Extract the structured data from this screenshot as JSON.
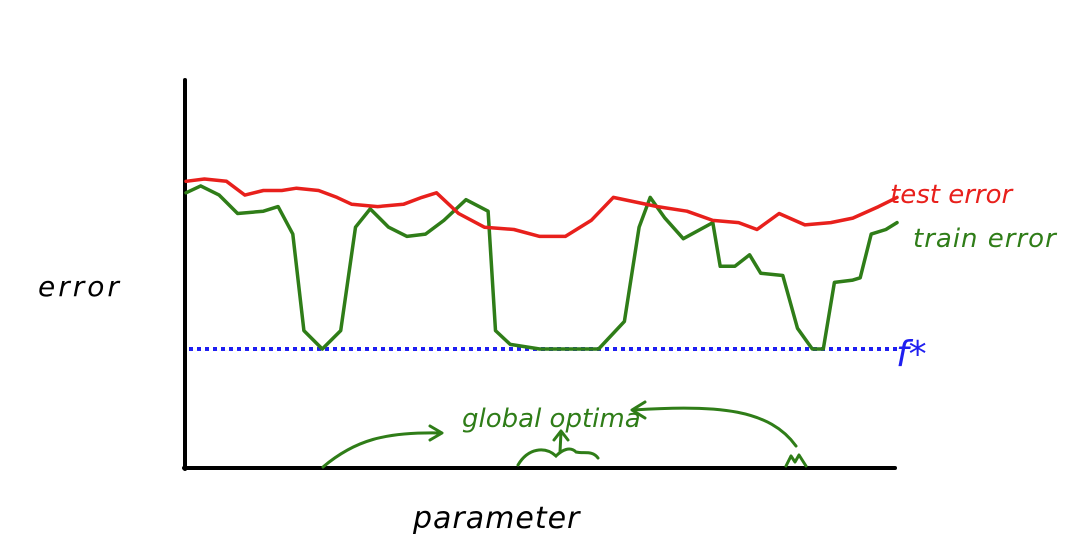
{
  "labels": {
    "y_axis": "error",
    "x_axis": "parameter",
    "test_series": "test error",
    "train_series": "train error",
    "baseline": "f*",
    "annotation": "global optima"
  },
  "colors": {
    "test": "#e8201c",
    "train": "#2f7d18",
    "baseline": "#1f1ff0",
    "axis": "#000000",
    "text": "#000000"
  },
  "chart_data": {
    "type": "line",
    "title": "",
    "xlabel": "parameter",
    "ylabel": "error",
    "x_axis_ticks": false,
    "y_axis_ticks": false,
    "grid": false,
    "baseline": {
      "label": "f*",
      "style": "dotted",
      "value": 0
    },
    "series": [
      {
        "name": "test error",
        "points": [
          [
            0.0,
            0.73
          ],
          [
            0.5,
            0.74
          ],
          [
            1.1,
            0.73
          ],
          [
            1.6,
            0.67
          ],
          [
            2.1,
            0.69
          ],
          [
            2.6,
            0.69
          ],
          [
            3.0,
            0.7
          ],
          [
            3.6,
            0.69
          ],
          [
            4.1,
            0.66
          ],
          [
            4.5,
            0.63
          ],
          [
            5.2,
            0.62
          ],
          [
            5.9,
            0.63
          ],
          [
            6.4,
            0.66
          ],
          [
            6.8,
            0.68
          ],
          [
            7.4,
            0.59
          ],
          [
            8.1,
            0.53
          ],
          [
            8.9,
            0.52
          ],
          [
            9.6,
            0.49
          ],
          [
            10.3,
            0.49
          ],
          [
            11.0,
            0.56
          ],
          [
            11.6,
            0.66
          ],
          [
            12.2,
            0.64
          ],
          [
            12.8,
            0.62
          ],
          [
            13.6,
            0.6
          ],
          [
            14.3,
            0.56
          ],
          [
            15.0,
            0.55
          ],
          [
            15.5,
            0.52
          ],
          [
            16.1,
            0.59
          ],
          [
            16.8,
            0.54
          ],
          [
            17.5,
            0.55
          ],
          [
            18.1,
            0.57
          ],
          [
            18.8,
            0.62
          ],
          [
            19.3,
            0.66
          ]
        ]
      },
      {
        "name": "train error",
        "points": [
          [
            0.0,
            0.68
          ],
          [
            0.4,
            0.71
          ],
          [
            0.9,
            0.67
          ],
          [
            1.4,
            0.59
          ],
          [
            2.1,
            0.6
          ],
          [
            2.5,
            0.62
          ],
          [
            2.9,
            0.5
          ],
          [
            3.2,
            0.08
          ],
          [
            3.7,
            0.0
          ],
          [
            4.2,
            0.08
          ],
          [
            4.6,
            0.53
          ],
          [
            5.0,
            0.61
          ],
          [
            5.5,
            0.53
          ],
          [
            6.0,
            0.49
          ],
          [
            6.5,
            0.5
          ],
          [
            7.0,
            0.56
          ],
          [
            7.6,
            0.65
          ],
          [
            8.2,
            0.6
          ],
          [
            8.4,
            0.08
          ],
          [
            8.8,
            0.02
          ],
          [
            9.6,
            0.0
          ],
          [
            10.5,
            0.0
          ],
          [
            11.2,
            0.0
          ],
          [
            11.9,
            0.12
          ],
          [
            12.3,
            0.53
          ],
          [
            12.6,
            0.66
          ],
          [
            13.0,
            0.57
          ],
          [
            13.5,
            0.48
          ],
          [
            14.3,
            0.55
          ],
          [
            14.5,
            0.36
          ],
          [
            14.9,
            0.36
          ],
          [
            15.3,
            0.41
          ],
          [
            15.6,
            0.33
          ],
          [
            16.2,
            0.32
          ],
          [
            16.6,
            0.09
          ],
          [
            17.0,
            0.0
          ],
          [
            17.3,
            0.0
          ],
          [
            17.6,
            0.29
          ],
          [
            18.1,
            0.3
          ],
          [
            18.3,
            0.31
          ],
          [
            18.6,
            0.5
          ],
          [
            19.0,
            0.52
          ],
          [
            19.3,
            0.55
          ]
        ]
      }
    ]
  }
}
